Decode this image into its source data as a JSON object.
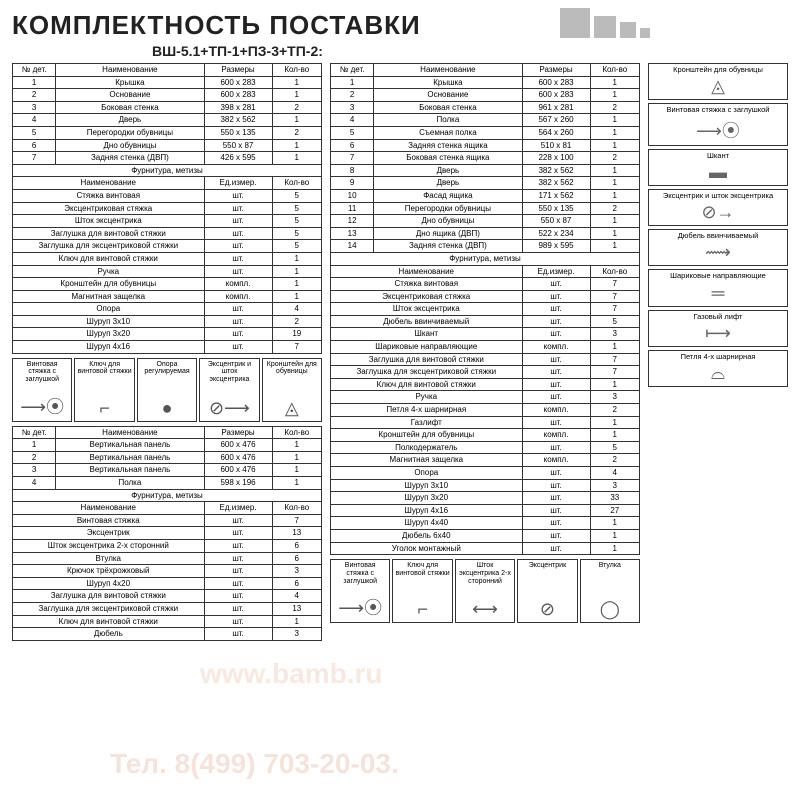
{
  "title": "КОМПЛЕКТНОСТЬ ПОСТАВКИ",
  "subtitle": "ВШ-5.1+ТП-1+ПЗ-3+ТП-2:",
  "headers": {
    "numdet": "№ дет.",
    "name": "Наименование",
    "size": "Размеры",
    "qty": "Кол-во",
    "unit": "Ед.измер.",
    "furn": "Фурнитура, метизы"
  },
  "table1": [
    [
      "1",
      "Крышка",
      "600 х 283",
      "1"
    ],
    [
      "2",
      "Основание",
      "600 х 283",
      "1"
    ],
    [
      "3",
      "Боковая стенка",
      "398 х 281",
      "2"
    ],
    [
      "4",
      "Дверь",
      "382 х 562",
      "1"
    ],
    [
      "5",
      "Перегородки обувницы",
      "550 х 135",
      "2"
    ],
    [
      "6",
      "Дно обувницы",
      "550 х 87",
      "1"
    ],
    [
      "7",
      "Задняя стенка (ДВП)",
      "426 х 595",
      "1"
    ]
  ],
  "table1f": [
    [
      "Стяжка винтовая",
      "шт.",
      "5"
    ],
    [
      "Эксцентриковая стяжка",
      "шт.",
      "5"
    ],
    [
      "Шток эксцентрика",
      "шт.",
      "5"
    ],
    [
      "Заглушка для винтовой стяжки",
      "шт.",
      "5"
    ],
    [
      "Заглушка для эксцентриковой стяжки",
      "шт.",
      "5"
    ],
    [
      "Ключ для винтовой стяжки",
      "шт.",
      "1"
    ],
    [
      "Ручка",
      "шт.",
      "1"
    ],
    [
      "Кронштейн для обувницы",
      "компл.",
      "1"
    ],
    [
      "Магнитная защелка",
      "компл.",
      "1"
    ],
    [
      "Опора",
      "шт.",
      "4"
    ],
    [
      "Шуруп 3х10",
      "шт.",
      "2"
    ],
    [
      "Шуруп 3х20",
      "шт.",
      "19"
    ],
    [
      "Шуруп 4х16",
      "шт.",
      "7"
    ]
  ],
  "parts1": [
    {
      "lbl": "Винтовая стяжка с заглушкой",
      "ico": "⟶⦿"
    },
    {
      "lbl": "Ключ для винтовой стяжки",
      "ico": "⌐"
    },
    {
      "lbl": "Опора регулируемая",
      "ico": "●"
    },
    {
      "lbl": "Эксцентрик и шток эксцентрика",
      "ico": "⊘⟶"
    },
    {
      "lbl": "Кронштейн для обувницы",
      "ico": "◬"
    }
  ],
  "table2": [
    [
      "1",
      "Вертикальная панель",
      "600 х 476",
      "1"
    ],
    [
      "2",
      "Вертикальная панель",
      "600 х 476",
      "1"
    ],
    [
      "3",
      "Вертикальная панель",
      "600 х 476",
      "1"
    ],
    [
      "4",
      "Полка",
      "598 х 196",
      "1"
    ]
  ],
  "table2f": [
    [
      "Винтовая стяжка",
      "шт.",
      "7"
    ],
    [
      "Эксцентрик",
      "шт.",
      "13"
    ],
    [
      "Шток эксцентрика 2-х сторонний",
      "шт.",
      "6"
    ],
    [
      "Втулка",
      "шт.",
      "6"
    ],
    [
      "Крючок трёхрожковый",
      "шт.",
      "3"
    ],
    [
      "Шуруп 4х20",
      "шт.",
      "6"
    ],
    [
      "Заглушка для винтовой стяжки",
      "шт.",
      "4"
    ],
    [
      "Заглушка для эксцентриковой стяжки",
      "шт.",
      "13"
    ],
    [
      "Ключ для винтовой стяжки",
      "шт.",
      "1"
    ],
    [
      "Дюбель",
      "шт.",
      "3"
    ]
  ],
  "table3": [
    [
      "1",
      "Крышка",
      "600 х 283",
      "1"
    ],
    [
      "2",
      "Основание",
      "600 х 283",
      "1"
    ],
    [
      "3",
      "Боковая стенка",
      "961 х 281",
      "2"
    ],
    [
      "4",
      "Полка",
      "567 х 260",
      "1"
    ],
    [
      "5",
      "Съемная полка",
      "564 х 260",
      "1"
    ],
    [
      "6",
      "Задняя стенка ящика",
      "510 х 81",
      "1"
    ],
    [
      "7",
      "Боковая стенка ящика",
      "228 х 100",
      "2"
    ],
    [
      "8",
      "Дверь",
      "382 х 562",
      "1"
    ],
    [
      "9",
      "Дверь",
      "382 х 562",
      "1"
    ],
    [
      "10",
      "Фасад ящика",
      "171 х 562",
      "1"
    ],
    [
      "11",
      "Перегородки обувницы",
      "550 х 135",
      "2"
    ],
    [
      "12",
      "Дно обувницы",
      "550 х 87",
      "1"
    ],
    [
      "13",
      "Дно ящика (ДВП)",
      "522 х 234",
      "1"
    ],
    [
      "14",
      "Задняя стенка (ДВП)",
      "989 х 595",
      "1"
    ]
  ],
  "table3f": [
    [
      "Стяжка винтовая",
      "шт.",
      "7"
    ],
    [
      "Эксцентриковая стяжка",
      "шт.",
      "7"
    ],
    [
      "Шток эксцентрика",
      "шт.",
      "7"
    ],
    [
      "Дюбель ввинчиваемый",
      "шт.",
      "5"
    ],
    [
      "Шкант",
      "шт.",
      "3"
    ],
    [
      "Шариковые направляющие",
      "компл.",
      "1"
    ],
    [
      "Заглушка для винтовой стяжки",
      "шт.",
      "7"
    ],
    [
      "Заглушка для эксцентриковой стяжки",
      "шт.",
      "7"
    ],
    [
      "Ключ для винтовой стяжки",
      "шт.",
      "1"
    ],
    [
      "Ручка",
      "шт.",
      "3"
    ],
    [
      "Петля 4-х шарнирная",
      "компл.",
      "2"
    ],
    [
      "Газлифт",
      "шт.",
      "1"
    ],
    [
      "Кронштейн для обувницы",
      "компл.",
      "1"
    ],
    [
      "Полкодержатель",
      "шт.",
      "5"
    ],
    [
      "Магнитная защелка",
      "компл.",
      "2"
    ],
    [
      "Опора",
      "шт.",
      "4"
    ],
    [
      "Шуруп 3х10",
      "шт.",
      "3"
    ],
    [
      "Шуруп 3х20",
      "шт.",
      "33"
    ],
    [
      "Шуруп 4х16",
      "шт.",
      "27"
    ],
    [
      "Шуруп 4х40",
      "шт.",
      "1"
    ],
    [
      "Дюбель 6х40",
      "шт.",
      "1"
    ],
    [
      "Уголок монтажный",
      "шт.",
      "1"
    ]
  ],
  "parts2": [
    {
      "lbl": "Винтовая стяжка с заглушкой",
      "ico": "⟶⦿"
    },
    {
      "lbl": "Ключ для винтовой стяжки",
      "ico": "⌐"
    },
    {
      "lbl": "Шток эксцентрика 2-х сторонний",
      "ico": "⟷"
    },
    {
      "lbl": "Эксцентрик",
      "ico": "⊘"
    },
    {
      "lbl": "Втулка",
      "ico": "◯"
    }
  ],
  "side": [
    {
      "lbl": "Кронштейн для обувницы",
      "ico": "◬"
    },
    {
      "lbl": "Винтовая стяжка с заглушкой",
      "ico": "⟶⦿"
    },
    {
      "lbl": "Шкант",
      "ico": "▬"
    },
    {
      "lbl": "Эксцентрик и шток эксцентрика",
      "ico": "⊘→"
    },
    {
      "lbl": "Дюбель ввинчиваемый",
      "ico": "⟿"
    },
    {
      "lbl": "Шариковые направляющие",
      "ico": "═"
    },
    {
      "lbl": "Газовый лифт",
      "ico": "⟼"
    },
    {
      "lbl": "Петля 4-х шарнирная",
      "ico": "⌓"
    }
  ],
  "watermark1": "www.bamb.ru",
  "watermark2": "Тел. 8(499) 703-20-03."
}
